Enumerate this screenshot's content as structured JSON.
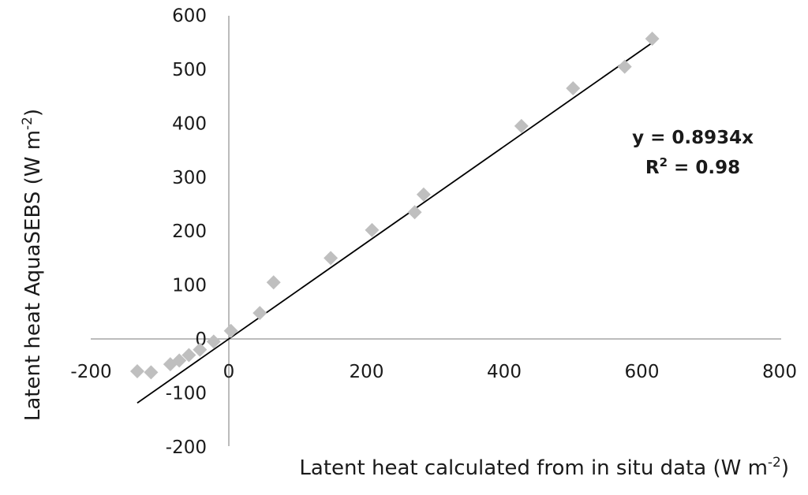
{
  "chart_data": {
    "type": "scatter",
    "xlabel": "Latent heat calculated from in situ data (W m",
    "xlabel_sup": "-2",
    "xlabel_end": ")",
    "ylabel": "Latent heat AquaSEBS (W m",
    "ylabel_sup": "-2",
    "ylabel_end": ")",
    "xlim": [
      -200,
      800
    ],
    "ylim": [
      -200,
      600
    ],
    "x_ticks": [
      -200,
      0,
      200,
      400,
      600,
      800
    ],
    "y_ticks": [
      -200,
      -100,
      0,
      100,
      200,
      300,
      400,
      500,
      600
    ],
    "grid": false,
    "marker": "diamond",
    "marker_color": "#bfbfbf",
    "line_color": "#000000",
    "points": [
      {
        "x": -133,
        "y": -60
      },
      {
        "x": -113,
        "y": -62
      },
      {
        "x": -85,
        "y": -47
      },
      {
        "x": -72,
        "y": -40
      },
      {
        "x": -58,
        "y": -30
      },
      {
        "x": -42,
        "y": -20
      },
      {
        "x": -22,
        "y": -5
      },
      {
        "x": 3,
        "y": 15
      },
      {
        "x": 45,
        "y": 48
      },
      {
        "x": 65,
        "y": 105
      },
      {
        "x": 148,
        "y": 150
      },
      {
        "x": 208,
        "y": 202
      },
      {
        "x": 270,
        "y": 235
      },
      {
        "x": 283,
        "y": 268
      },
      {
        "x": 425,
        "y": 395
      },
      {
        "x": 500,
        "y": 465
      },
      {
        "x": 575,
        "y": 505
      },
      {
        "x": 615,
        "y": 557
      }
    ],
    "trendline": {
      "slope": 0.8934,
      "x_start": -133,
      "x_end": 615
    },
    "annotations": {
      "equation": "y = 0.8934x",
      "r2_base": "R",
      "r2_sup": "2",
      "r2_value": " = 0.98"
    }
  }
}
